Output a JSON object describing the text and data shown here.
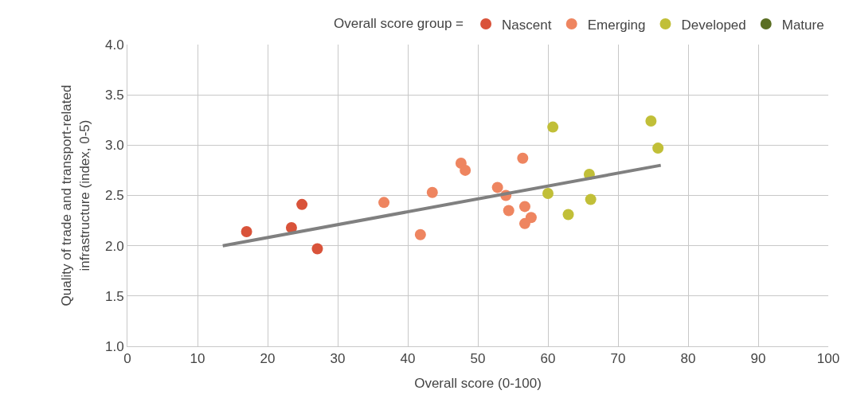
{
  "chart_data": {
    "type": "scatter",
    "xlabel": "Overall score (0-100)",
    "ylabel": "Quality of trade and transport-related\ninfrastructure (index, 0-5)",
    "legend_title": "Overall score group =",
    "series": [
      {
        "name": "Nascent",
        "color": "#d9533a",
        "x": [
          17.0,
          23.4,
          24.9,
          27.1
        ],
        "values": [
          2.14,
          2.18,
          2.41,
          1.97
        ]
      },
      {
        "name": "Emerging",
        "color": "#ee8560",
        "x": [
          36.6,
          43.5,
          41.8,
          47.6,
          48.2,
          52.8,
          54.0,
          54.4,
          56.4,
          56.7,
          57.6,
          56.7
        ],
        "values": [
          2.43,
          2.53,
          2.11,
          2.82,
          2.75,
          2.58,
          2.5,
          2.35,
          2.87,
          2.39,
          2.28,
          2.22
        ]
      },
      {
        "name": "Developed",
        "color": "#c1bf38",
        "x": [
          60.7,
          60.0,
          62.9,
          65.9,
          66.1,
          74.7,
          75.7
        ],
        "values": [
          3.18,
          2.52,
          2.31,
          2.71,
          2.46,
          3.24,
          2.97
        ]
      },
      {
        "name": "Mature",
        "color": "#5a6e22"
      },
      {
        "type": "line",
        "marker": "none",
        "color": "#808080",
        "x": [
          13.6,
          76.1
        ],
        "values": [
          2.0,
          2.8
        ]
      }
    ],
    "xlim": [
      0,
      100
    ],
    "xticks": [
      0,
      10,
      20,
      30,
      40,
      50,
      60,
      70,
      80,
      90,
      100
    ],
    "ylim": [
      1.0,
      4.0
    ],
    "yticks": [
      {
        "value": 1.0,
        "label": "1.0"
      },
      1.5,
      {
        "value": 2.0,
        "label": "2.0"
      },
      2.5,
      {
        "value": 3.0,
        "label": "3.0"
      },
      3.5,
      {
        "value": 4.0,
        "label": "4.0"
      }
    ],
    "grid": true,
    "legend": "top right",
    "marker": "circle"
  }
}
